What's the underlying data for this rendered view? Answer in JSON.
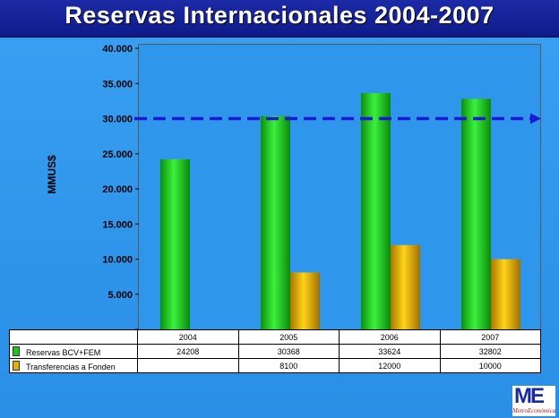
{
  "title": "Reservas Internacionales 2004-2007",
  "logo": {
    "mark": "ME",
    "text": "MetroEconómica"
  },
  "chart_data": {
    "type": "bar",
    "title": "Reservas Internacionales 2004-2007",
    "xlabel": "",
    "ylabel": "MMUS$",
    "categories": [
      "2004",
      "2005",
      "2006",
      "2007"
    ],
    "ylim": [
      0,
      40000
    ],
    "yticks": [
      0,
      5000,
      10000,
      15000,
      20000,
      25000,
      30000,
      35000,
      40000
    ],
    "ytick_labels": [
      "-",
      "5.000",
      "10.000",
      "15.000",
      "20.000",
      "25.000",
      "30.000",
      "35.000",
      "40.000"
    ],
    "series": [
      {
        "name": "Reservas BCV+FEM",
        "values": [
          24208,
          30368,
          33624,
          32802
        ],
        "labels": [
          "24208",
          "30368",
          "33624",
          "32802"
        ],
        "color": "#19c81a"
      },
      {
        "name": "Transferencias a Fonden",
        "values": [
          null,
          8100,
          12000,
          10000
        ],
        "labels": [
          "",
          "8100",
          "12000",
          "10000"
        ],
        "color": "#e3b000"
      }
    ],
    "reference_line": {
      "value": 30000,
      "color": "#1a1ad6",
      "style": "dashed-arrow"
    },
    "grid": false,
    "legend": "data-table-below"
  }
}
